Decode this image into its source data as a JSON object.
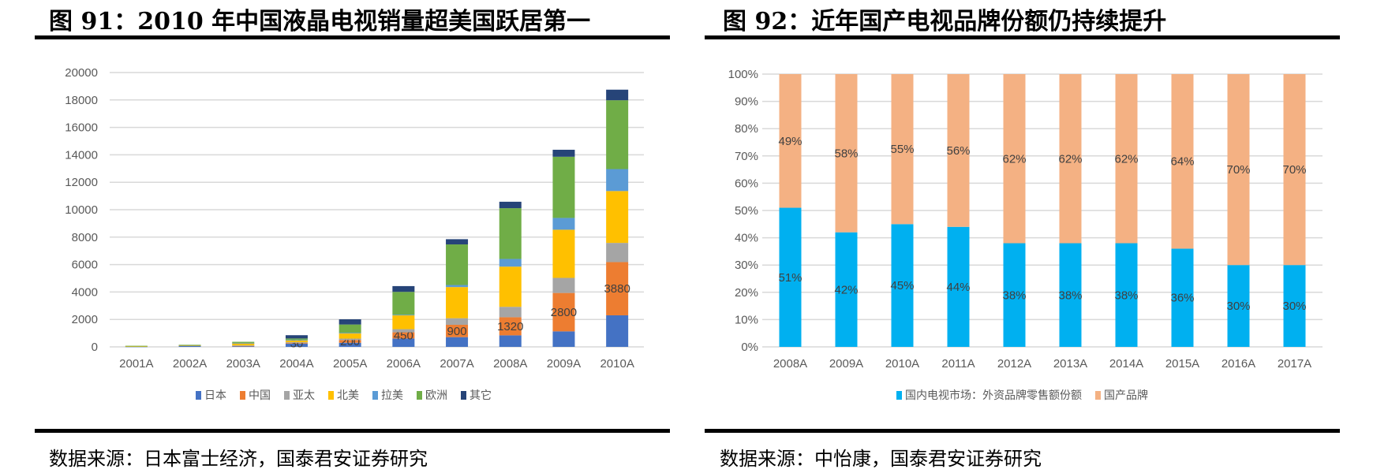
{
  "left": {
    "title": "图 91：2010 年中国液晶电视销量超美国跃居第一",
    "source": "数据来源：日本富士经济，国泰君安证券研究"
  },
  "right": {
    "title": "图 92：近年国产电视品牌份额仍持续提升",
    "source": "数据来源：中怡康，国泰君安证券研究"
  },
  "chart_data": [
    {
      "type": "bar",
      "stacked": true,
      "categories": [
        "2001A",
        "2002A",
        "2003A",
        "2004A",
        "2005A",
        "2006A",
        "2007A",
        "2008A",
        "2009A",
        "2010A"
      ],
      "ylim": [
        0,
        20000
      ],
      "yticks": [
        0,
        2000,
        4000,
        6000,
        8000,
        10000,
        12000,
        14000,
        16000,
        18000,
        20000
      ],
      "grid": true,
      "legend": "bottom",
      "series": [
        {
          "name": "日本",
          "color": "#4472C4",
          "values": [
            30,
            100,
            80,
            250,
            300,
            610,
            710,
            840,
            1130,
            2300
          ]
        },
        {
          "name": "中国",
          "color": "#ED7D31",
          "values": [
            0,
            0,
            5,
            30,
            200,
            450,
            900,
            1320,
            2800,
            3880
          ],
          "labels": [
            null,
            null,
            null,
            "30",
            "200",
            "450",
            "900",
            "1320",
            "2800",
            "3880"
          ]
        },
        {
          "name": "亚太",
          "color": "#A5A5A5",
          "values": [
            0,
            0,
            20,
            60,
            100,
            230,
            480,
            760,
            1100,
            1400
          ]
        },
        {
          "name": "北美",
          "color": "#FFC000",
          "values": [
            20,
            20,
            180,
            150,
            400,
            1010,
            2270,
            2930,
            3510,
            3780
          ]
        },
        {
          "name": "拉美",
          "color": "#5B9BD5",
          "values": [
            0,
            0,
            5,
            20,
            30,
            40,
            150,
            560,
            860,
            1600
          ]
        },
        {
          "name": "欧洲",
          "color": "#70AD47",
          "values": [
            30,
            30,
            80,
            100,
            600,
            1670,
            2960,
            3700,
            4460,
            5020
          ]
        },
        {
          "name": "其它",
          "color": "#264478",
          "values": [
            0,
            0,
            0,
            240,
            380,
            420,
            380,
            470,
            510,
            770
          ]
        }
      ]
    },
    {
      "type": "bar",
      "stacked": true,
      "percent": true,
      "categories": [
        "2008A",
        "2009A",
        "2010A",
        "2011A",
        "2012A",
        "2013A",
        "2014A",
        "2015A",
        "2016A",
        "2017A"
      ],
      "ylim": [
        0,
        100
      ],
      "yticks": [
        "0%",
        "10%",
        "20%",
        "30%",
        "40%",
        "50%",
        "60%",
        "70%",
        "80%",
        "90%",
        "100%"
      ],
      "grid": true,
      "legend": "bottom",
      "series": [
        {
          "name": "国内电视市场：外资品牌零售额份额",
          "color": "#00B0F0",
          "values": [
            51,
            42,
            45,
            44,
            38,
            38,
            38,
            36,
            30,
            30
          ],
          "labels": [
            "51%",
            "42%",
            "45%",
            "44%",
            "38%",
            "38%",
            "38%",
            "36%",
            "30%",
            "30%"
          ]
        },
        {
          "name": "国产品牌",
          "color": "#F4B183",
          "values": [
            49,
            58,
            55,
            56,
            62,
            62,
            62,
            64,
            70,
            70
          ],
          "labels": [
            "49%",
            "58%",
            "55%",
            "56%",
            "62%",
            "62%",
            "62%",
            "64%",
            "70%",
            "70%"
          ]
        }
      ]
    }
  ]
}
